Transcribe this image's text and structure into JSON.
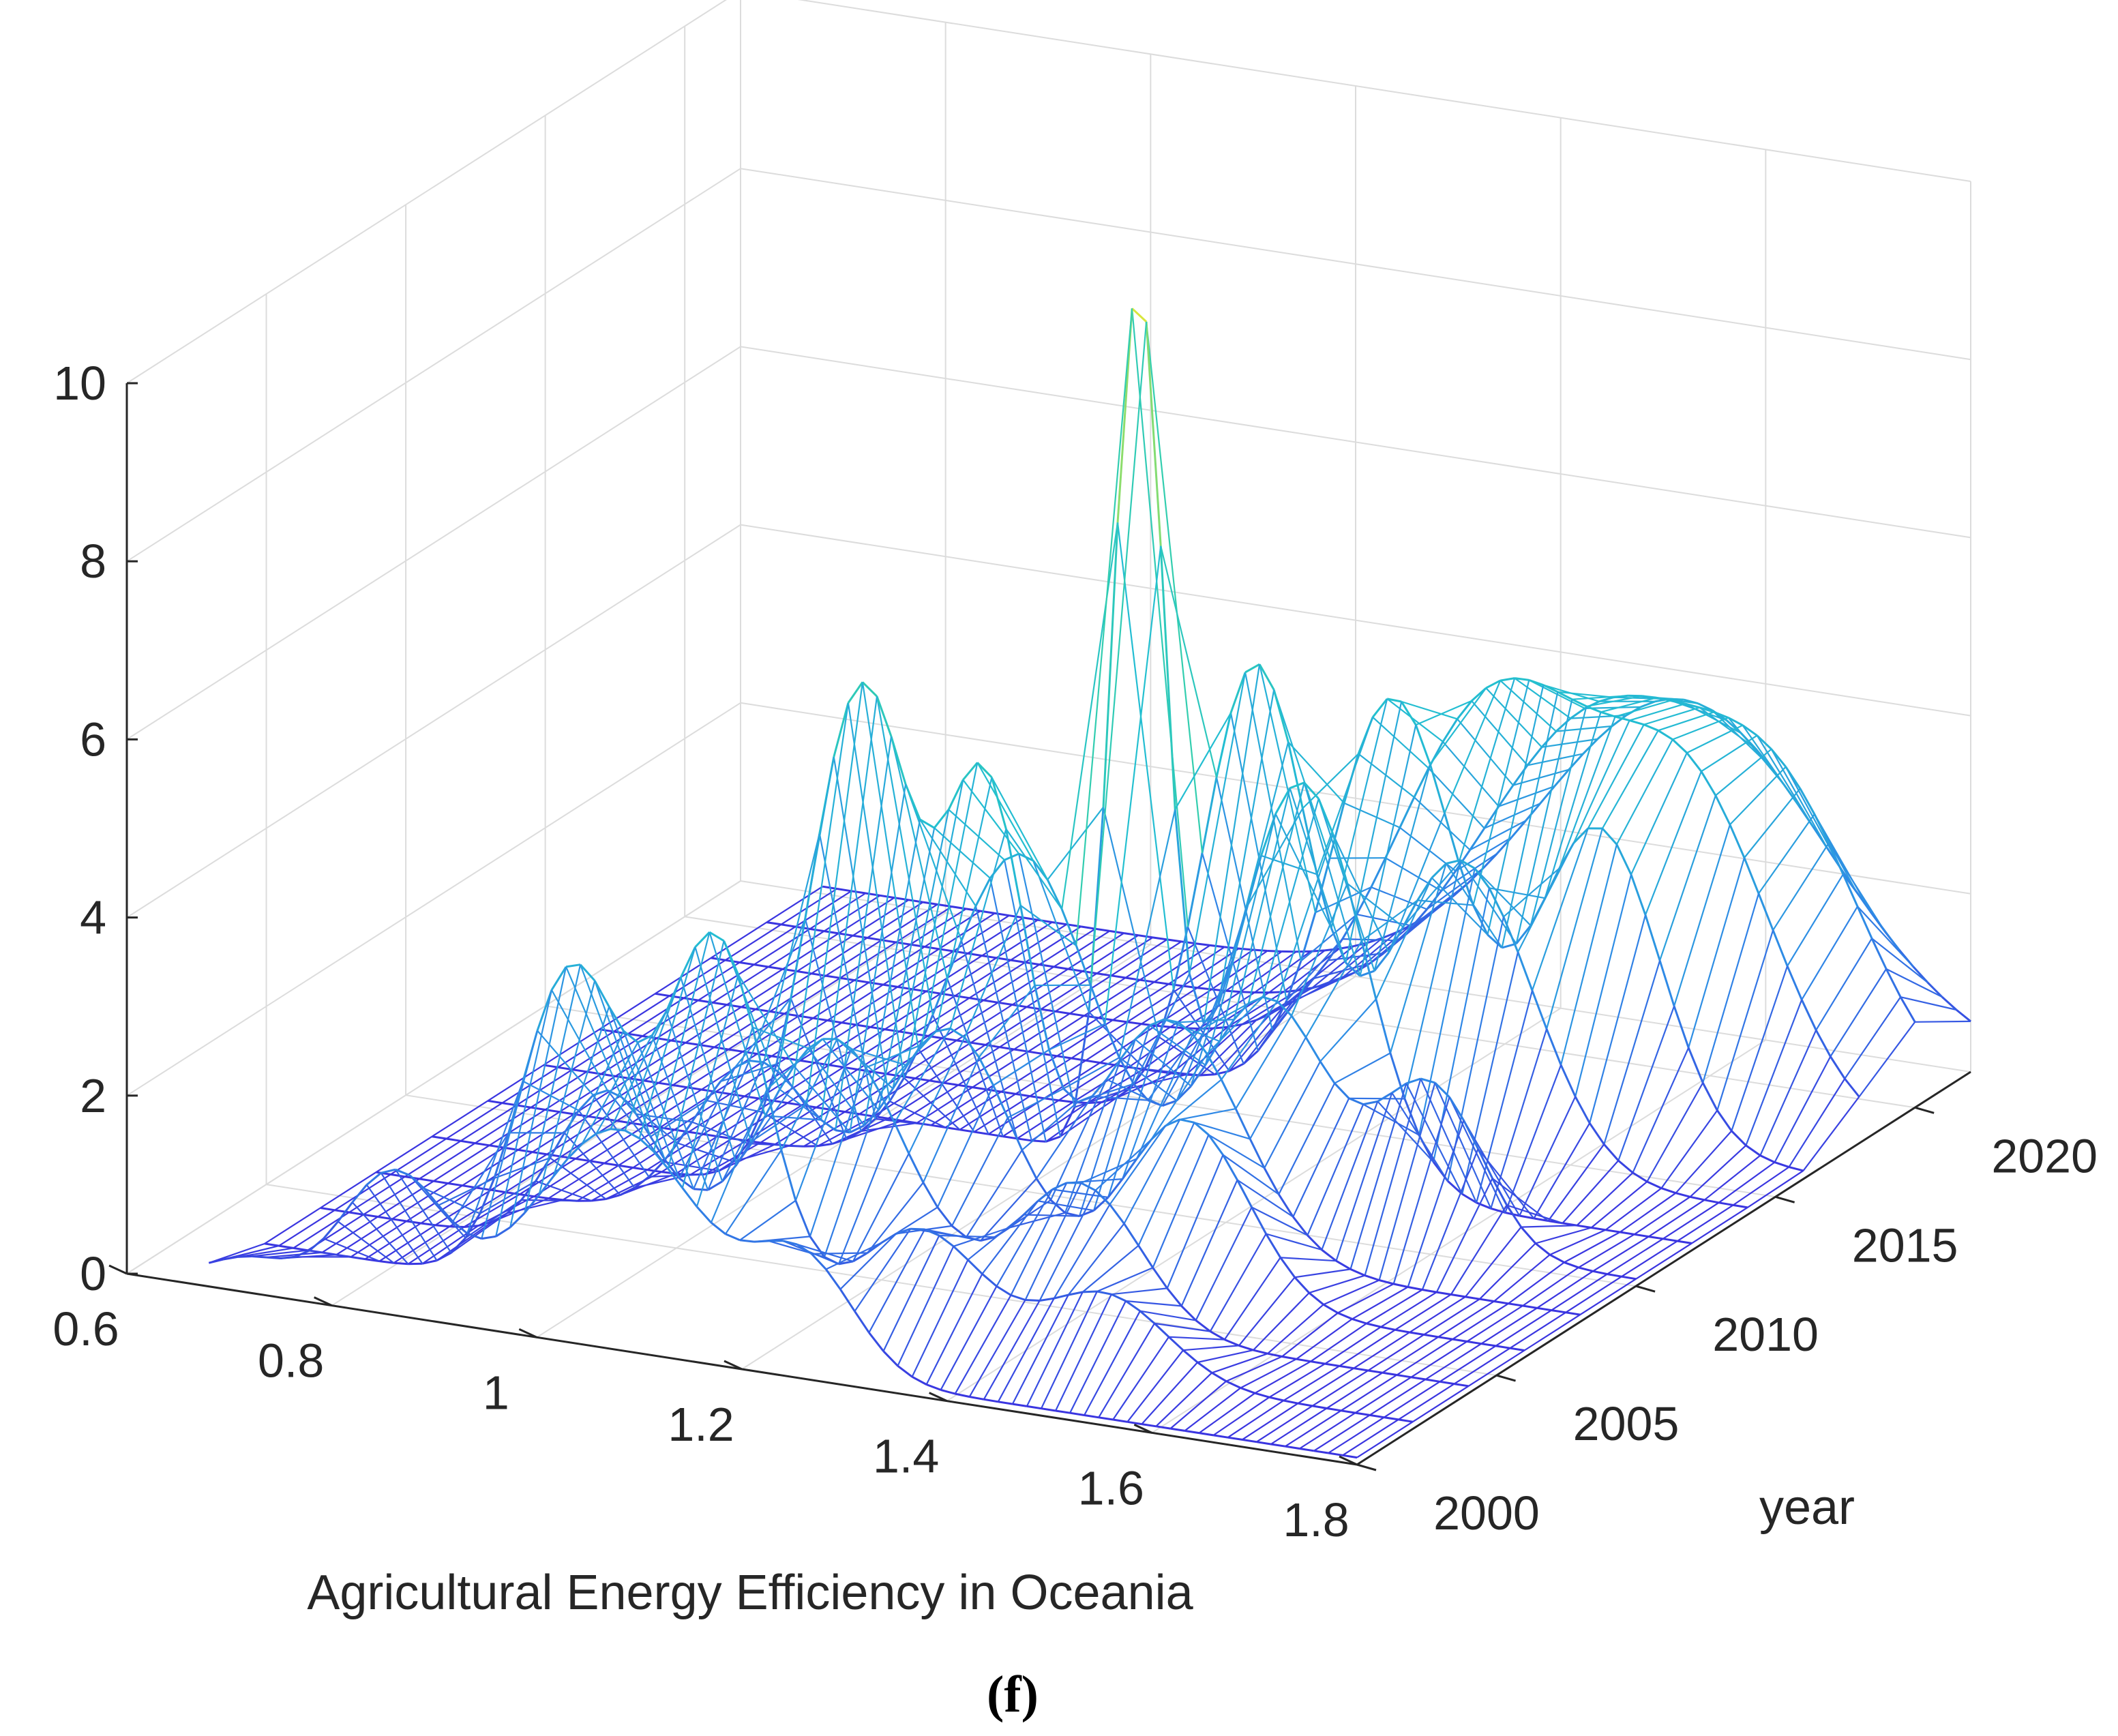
{
  "chart_data": {
    "type": "surface-3d-mesh",
    "xlabel": "Agricultural Energy Efficiency in Oceania",
    "ylabel": "year",
    "zlabel": "",
    "xlim": [
      0.6,
      1.8
    ],
    "ylim": [
      2000,
      2022
    ],
    "zlim": [
      0,
      10
    ],
    "x_ticks": [
      "0.6",
      "0.8",
      "1",
      "1.2",
      "1.4",
      "1.6",
      "1.8"
    ],
    "y_ticks": [
      "2000",
      "2005",
      "2010",
      "2015",
      "2020"
    ],
    "z_ticks": [
      "0",
      "2",
      "4",
      "6",
      "8",
      "10"
    ],
    "grid": true,
    "colormap": "parula",
    "colors": {
      "low": "#3b2fe0",
      "mid_low": "#2f8ae6",
      "mid": "#23bfd1",
      "mid_high": "#3ad4a0",
      "high": "#f5e92a"
    },
    "series": [
      {
        "year": 2000,
        "peaks": [
          {
            "x": 0.72,
            "z": 0.3,
            "w": 0.04
          },
          {
            "x": 0.86,
            "z": 1.5,
            "w": 0.05
          },
          {
            "x": 1.08,
            "z": 2.4,
            "w": 0.08
          },
          {
            "x": 1.26,
            "z": 1.2,
            "w": 0.05
          }
        ]
      },
      {
        "year": 2002,
        "peaks": [
          {
            "x": 0.98,
            "z": 3.6,
            "w": 0.05
          },
          {
            "x": 1.12,
            "z": 4.2,
            "w": 0.05
          },
          {
            "x": 1.32,
            "z": 1.3,
            "w": 0.06
          },
          {
            "x": 1.5,
            "z": 0.9,
            "w": 0.06
          }
        ]
      },
      {
        "year": 2004,
        "peaks": [
          {
            "x": 0.96,
            "z": 1.8,
            "w": 0.05
          },
          {
            "x": 1.18,
            "z": 2.8,
            "w": 0.07
          },
          {
            "x": 1.42,
            "z": 1.6,
            "w": 0.06
          }
        ]
      },
      {
        "year": 2006,
        "peaks": [
          {
            "x": 1.05,
            "z": 1.9,
            "w": 0.06
          },
          {
            "x": 1.24,
            "z": 2.6,
            "w": 0.06
          },
          {
            "x": 1.47,
            "z": 2.0,
            "w": 0.06
          }
        ]
      },
      {
        "year": 2008,
        "peaks": [
          {
            "x": 1.1,
            "z": 5.8,
            "w": 0.05
          },
          {
            "x": 1.22,
            "z": 4.7,
            "w": 0.04
          },
          {
            "x": 1.4,
            "z": 2.6,
            "w": 0.07
          }
        ]
      },
      {
        "year": 2010,
        "peaks": [
          {
            "x": 1.2,
            "z": 3.7,
            "w": 0.07
          },
          {
            "x": 1.44,
            "z": 2.5,
            "w": 0.06
          },
          {
            "x": 1.6,
            "z": 1.8,
            "w": 0.05
          }
        ]
      },
      {
        "year": 2012,
        "peaks": [
          {
            "x": 1.26,
            "z": 9.7,
            "w": 0.025
          },
          {
            "x": 1.42,
            "z": 4.5,
            "w": 0.06
          }
        ]
      },
      {
        "year": 2014,
        "peaks": [
          {
            "x": 1.32,
            "z": 5.2,
            "w": 0.05
          },
          {
            "x": 1.52,
            "z": 3.4,
            "w": 0.07
          }
        ]
      },
      {
        "year": 2016,
        "peaks": [
          {
            "x": 1.4,
            "z": 4.6,
            "w": 0.06
          },
          {
            "x": 1.6,
            "z": 3.5,
            "w": 0.06
          }
        ]
      },
      {
        "year": 2018,
        "peaks": [
          {
            "x": 1.45,
            "z": 4.3,
            "w": 0.1
          },
          {
            "x": 1.64,
            "z": 3.2,
            "w": 0.08
          }
        ]
      },
      {
        "year": 2020,
        "peaks": [
          {
            "x": 1.5,
            "z": 3.8,
            "w": 0.12
          },
          {
            "x": 1.68,
            "z": 2.2,
            "w": 0.08
          }
        ]
      },
      {
        "year": 2022,
        "peaks": [
          {
            "x": 1.52,
            "z": 3.6,
            "w": 0.14
          }
        ]
      }
    ]
  },
  "caption": "(f)"
}
